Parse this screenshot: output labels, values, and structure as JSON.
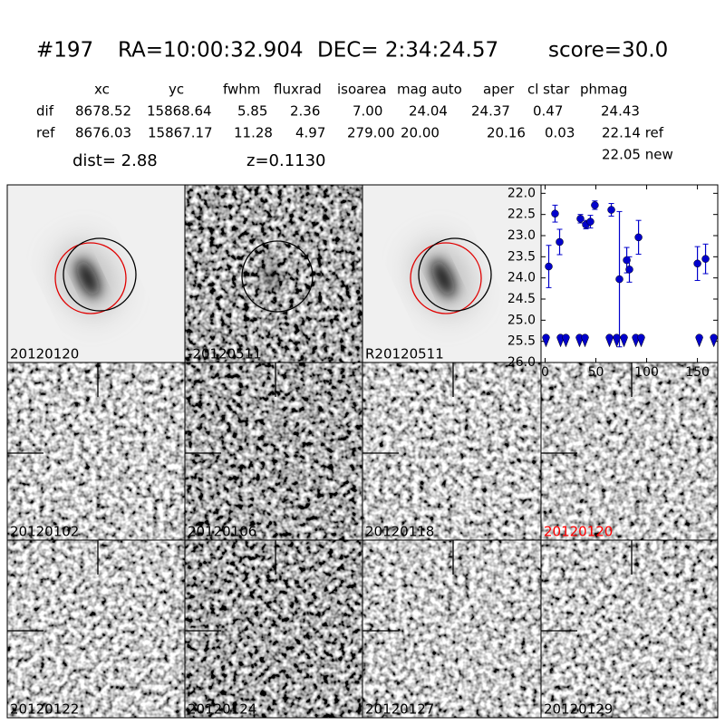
{
  "header": {
    "id": "#197",
    "ra": "RA=10:00:32.904",
    "dec": "DEC= 2:34:24.57",
    "score": "score=30.0"
  },
  "table": {
    "columns": [
      "xc",
      "yc",
      "fwhm",
      "fluxrad",
      "isoarea",
      "mag auto",
      "aper",
      "cl star",
      "phmag"
    ],
    "rows": [
      [
        "dif",
        "8678.52",
        "15868.64",
        "5.85",
        "2.36",
        "7.00",
        "24.04",
        "24.37",
        "0.47",
        "24.43"
      ],
      [
        "ref",
        "8676.03",
        "15867.17",
        "11.28",
        "4.97",
        "279.00",
        "20.00",
        "20.16",
        "0.03",
        "22.14 ref"
      ]
    ],
    "extra": "22.05 new"
  },
  "dist": "dist=  2.88",
  "z": "z=0.1130",
  "panels": [
    {
      "label": "20120120"
    },
    {
      "label": "-20120511"
    },
    {
      "label": "R20120511"
    },
    {
      "label": "20120102"
    },
    {
      "label": "20120106"
    },
    {
      "label": "20120118"
    },
    {
      "label": "20120120",
      "color": "#ff0000"
    },
    {
      "label": "20120122"
    },
    {
      "label": "20120124"
    },
    {
      "label": "20120127"
    },
    {
      "label": "20120129"
    }
  ],
  "chart_data": {
    "type": "scatter",
    "color": "#0000cc",
    "x": [
      3.6,
      9.8,
      14.3,
      34.8,
      40.2,
      44.6,
      49,
      65.2,
      73.2,
      80.4,
      83,
      92,
      150,
      158
    ],
    "values": [
      23.73,
      22.48,
      23.15,
      22.6,
      22.74,
      22.67,
      22.28,
      22.39,
      24.03,
      23.58,
      23.8,
      23.04,
      23.66,
      23.55
    ],
    "errors": [
      0.5,
      0.2,
      0.3,
      0.1,
      0.1,
      0.15,
      0.1,
      0.15,
      1.6,
      0.3,
      0.3,
      0.4,
      0.4,
      0.35
    ],
    "upper_limits": {
      "x": [
        0.9,
        15.2,
        20.5,
        33.9,
        39.3,
        63.4,
        70.5,
        77.7,
        89.3,
        94.6,
        151.8,
        166.1
      ],
      "values": [
        25.5,
        25.5,
        25.5,
        25.5,
        25.5,
        25.5,
        25.5,
        25.5,
        25.5,
        25.5,
        25.5,
        25.5
      ]
    },
    "xlim": [
      -4,
      170
    ],
    "ylim": [
      26,
      21.8
    ],
    "xticks": [
      0,
      50,
      100,
      150
    ],
    "yticks": [
      {
        "value": 22,
        "label": "22.0"
      },
      {
        "value": 22.5,
        "label": "22.5"
      },
      {
        "value": 23,
        "label": "23.0"
      },
      {
        "value": 23.5,
        "label": "23.5"
      },
      {
        "value": 24,
        "label": "24.0"
      },
      {
        "value": 24.5,
        "label": "24.5"
      },
      {
        "value": 25,
        "label": "25.0"
      },
      {
        "value": 25.5,
        "label": "25.5"
      },
      {
        "value": 26,
        "label": "26.0"
      }
    ]
  }
}
